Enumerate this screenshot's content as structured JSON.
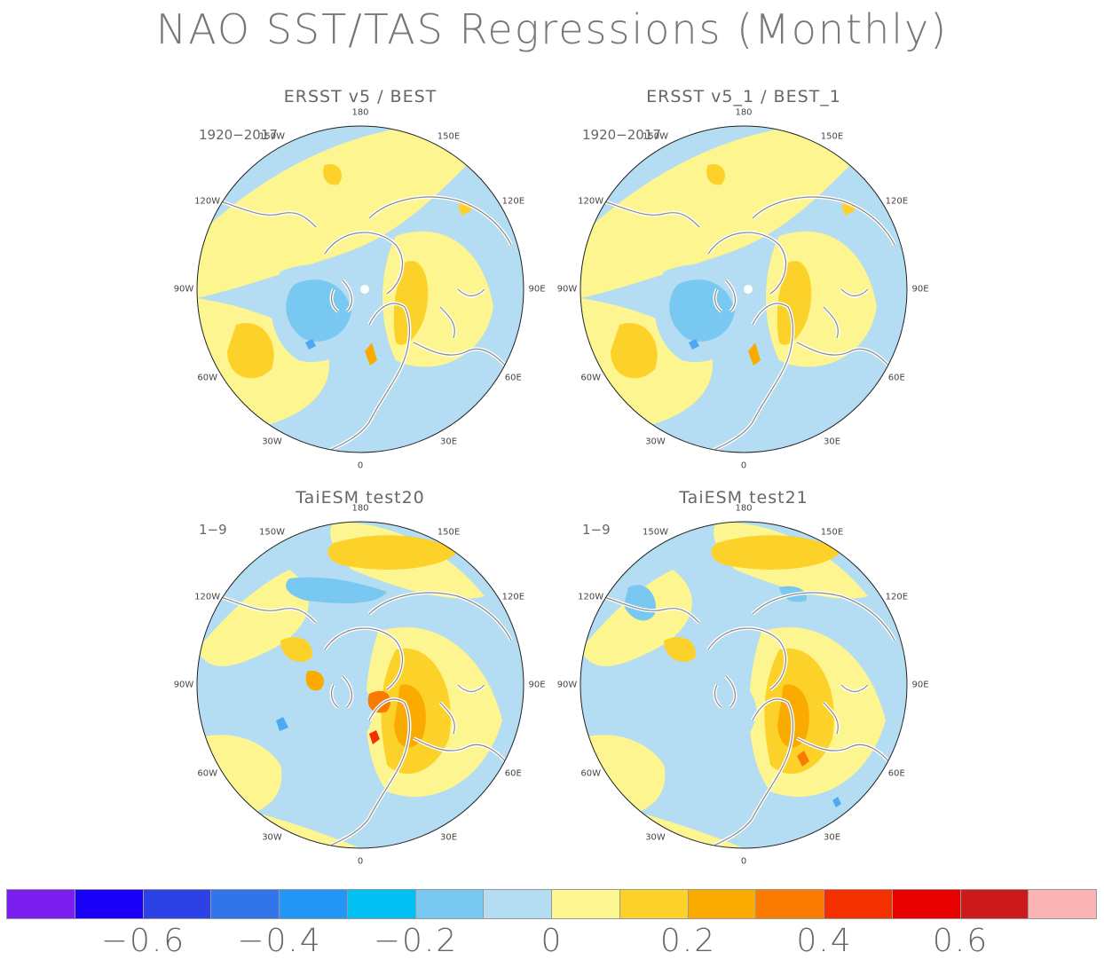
{
  "title": "NAO SST/TAS Regressions (Monthly)",
  "colors": {
    "lev_m2": "#b4dcf2",
    "lev_m3": "#78c8f2",
    "lev_m4": "#4eaaf0",
    "lev_p1": "#fdf690",
    "lev_p2": "#fcd22a",
    "lev_p3": "#fbaa00",
    "lev_p4": "#fb7a00",
    "lev_p5": "#f43000",
    "land_outline": "#888888",
    "ice_mask": "#ffffff"
  },
  "panels": [
    {
      "title": "ERSST v5 / BEST",
      "period": "1920−2017"
    },
    {
      "title": "ERSST v5_1 / BEST_1",
      "period": "1920−2017"
    },
    {
      "title": "TaiESM test20",
      "period": "1−9"
    },
    {
      "title": "TaiESM test21",
      "period": "1−9"
    }
  ],
  "longitude_labels": {
    "top": "180",
    "top_right": "150E",
    "upper_right": "120E",
    "right": "90E",
    "lower_right": "60E",
    "bottom_right": "30E",
    "bottom": "0",
    "bottom_left": "30W",
    "lower_left": "60W",
    "left": "90W",
    "upper_left": "120W",
    "top_left": "150W"
  },
  "colorbar": {
    "colors": [
      "#7b1ff0",
      "#1a00f8",
      "#2c42e6",
      "#3274ea",
      "#2196f6",
      "#00c0f4",
      "#78c8f2",
      "#b4dcf2",
      "#fdf690",
      "#fcd22a",
      "#fbaa00",
      "#fb7a00",
      "#f43000",
      "#e60000",
      "#cc1a1a",
      "#fdb4b4"
    ],
    "labels": [
      "−0.6",
      "−0.4",
      "−0.2",
      "0",
      "0.2",
      "0.4",
      "0.6"
    ]
  }
}
